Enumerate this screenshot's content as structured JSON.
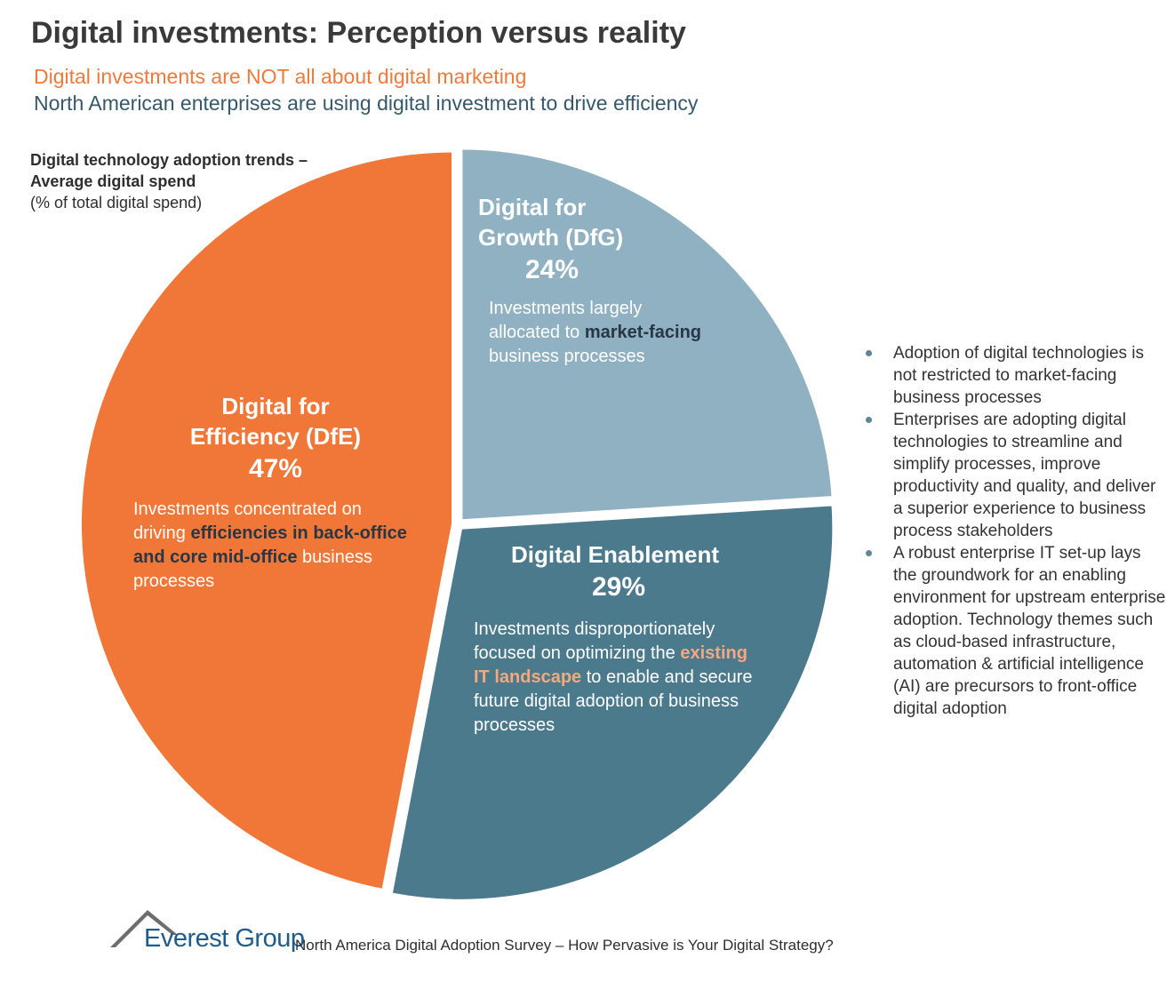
{
  "title": "Digital investments: Perception versus reality",
  "subtitles": [
    "Digital investments are NOT all about digital marketing",
    "North American enterprises are using digital investment to drive efficiency"
  ],
  "colors": {
    "orange": "#f07737",
    "light_blue": "#8fb1c1",
    "dark_blue": "#4c7a8d",
    "subtitle_orange": "#ee7a3c",
    "subtitle_blue": "#35586a",
    "bullet": "#5f8698",
    "logo_blue": "#1f5c8c",
    "logo_mountain": "#6d6d6d"
  },
  "chart_data": {
    "type": "pie",
    "title_lines": [
      "Digital technology adoption trends –",
      "Average digital spend"
    ],
    "unit_note": "(% of total digital spend)",
    "slices": [
      {
        "key": "dfg",
        "name_lines": [
          "Digital for",
          "Growth (DfG)"
        ],
        "value": 24,
        "label": "24%",
        "color": "#8fb1c1",
        "description": [
          "Investments largely",
          "allocated to ",
          "market-facing",
          "",
          " business processes"
        ]
      },
      {
        "key": "de",
        "name_lines": [
          "Digital Enablement"
        ],
        "value": 29,
        "label": "29%",
        "color": "#4c7a8d",
        "description": [
          "Investments disproportionately focused on optimizing the ",
          "existing IT landscape",
          " to enable and secure future digital adoption of business processes"
        ]
      },
      {
        "key": "dfe",
        "name_lines": [
          "Digital for",
          "Efficiency (DfE)"
        ],
        "value": 47,
        "label": "47%",
        "color": "#f07737",
        "description": [
          "Investments concentrated on driving ",
          "efficiencies in back-office and core mid-office",
          " business processes"
        ]
      }
    ]
  },
  "bullets": [
    "Adoption of digital technologies is not restricted to market-facing business processes",
    "Enterprises are adopting digital technologies to streamline and simplify processes, improve productivity and quality, and deliver a superior experience to business process stakeholders",
    "A robust enterprise IT set-up lays the groundwork for an enabling environment for upstream enterprise adoption. Technology themes such as cloud-based infrastructure, automation & artificial intelligence (AI) are precursors to front-office digital adoption"
  ],
  "footer": {
    "logo_text": "Everest Group",
    "source": "North America Digital Adoption Survey – How Pervasive is Your Digital Strategy?",
    "logo_icon": "mountain-peak-icon"
  }
}
